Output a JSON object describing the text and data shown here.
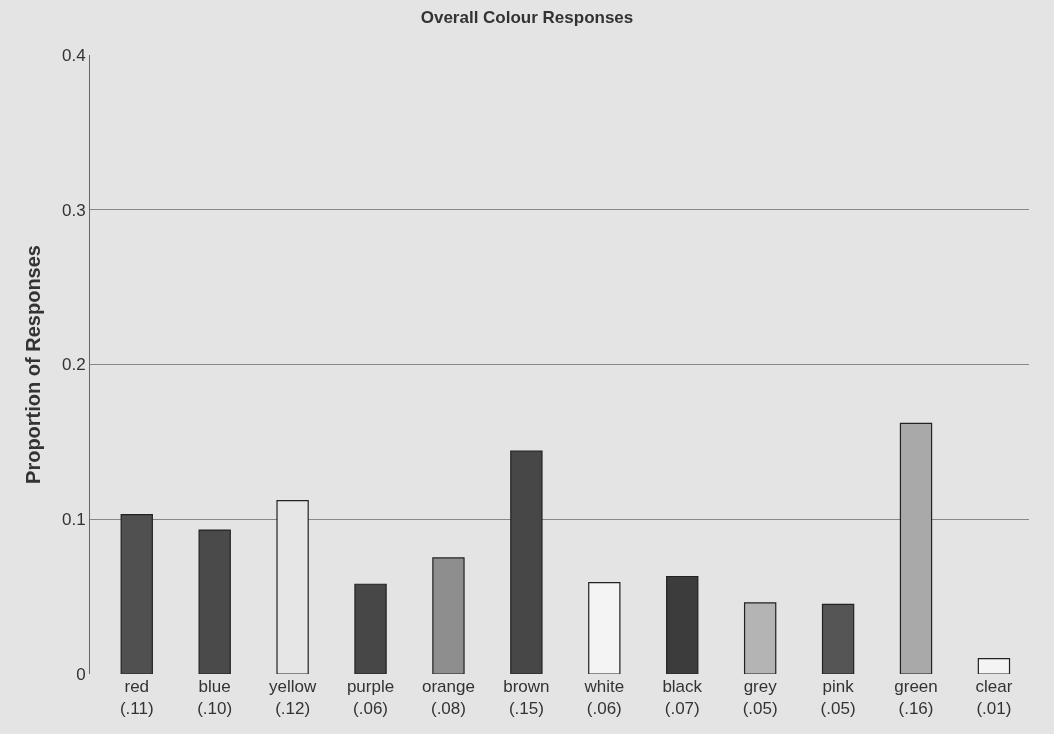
{
  "chart_data": {
    "type": "bar",
    "title": "Overall Colour Responses",
    "ylabel": "Proportion of Responses",
    "categories": [
      "red\n(.11)",
      "blue\n(.10)",
      "yellow\n(.12)",
      "purple\n(.06)",
      "orange\n(.08)",
      "brown\n(.15)",
      "white\n(.06)",
      "black\n(.07)",
      "grey\n(.05)",
      "pink\n(.05)",
      "green\n(.16)",
      "clear\n(.01)"
    ],
    "values": [
      0.103,
      0.093,
      0.112,
      0.058,
      0.075,
      0.144,
      0.059,
      0.063,
      0.046,
      0.045,
      0.162,
      0.01
    ],
    "colors": [
      "#505050",
      "#4a4a4a",
      "#e6e6e6",
      "#474747",
      "#8e8e8e",
      "#474747",
      "#f4f4f4",
      "#3c3c3c",
      "#b4b4b4",
      "#555555",
      "#a9a9a9",
      "#f4f4f4"
    ],
    "ylim": [
      0,
      0.4
    ],
    "yticks": [
      {
        "value": 0,
        "label": "0"
      },
      0.1,
      0.2,
      0.3,
      0.4
    ],
    "grid": "y"
  }
}
